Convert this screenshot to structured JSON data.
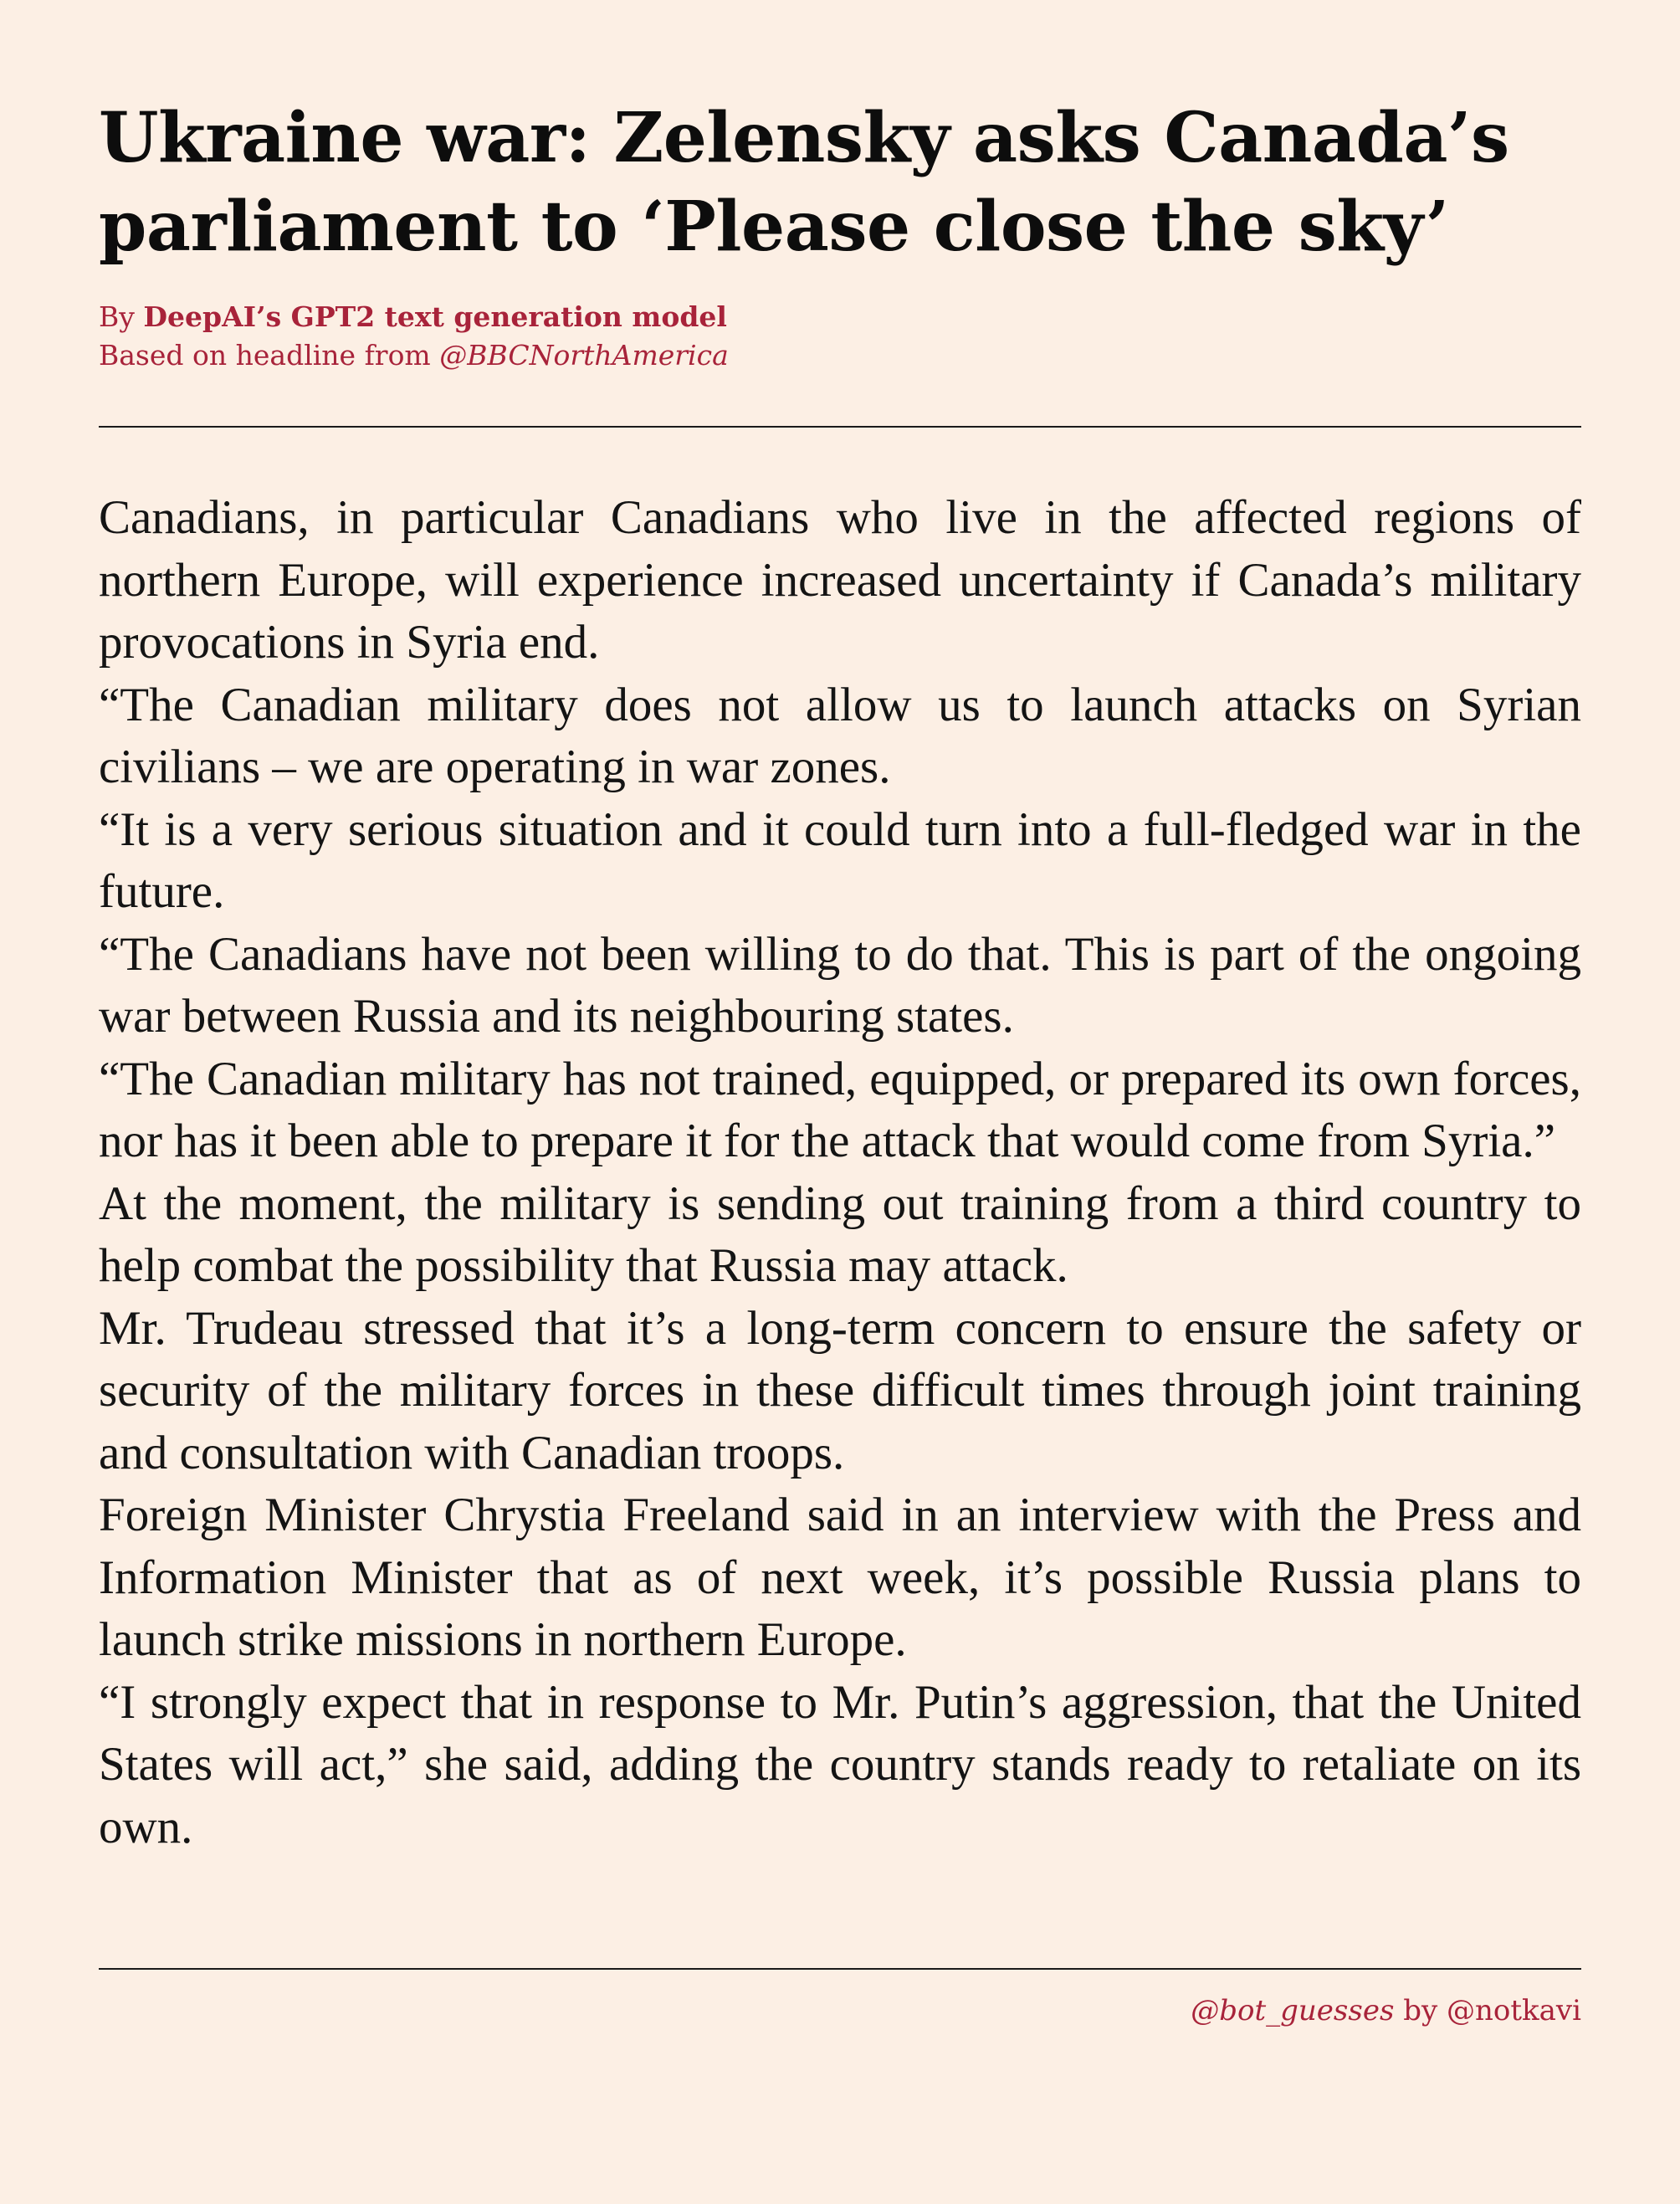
{
  "article": {
    "headline_line1": "Ukraine war: Zelensky asks Canada’s",
    "headline_line2": "parliament to ‘Please close the sky’",
    "byline": {
      "prefix": "By ",
      "author": "DeepAI’s GPT2 text generation model",
      "based_on_prefix": "Based on headline from ",
      "source_handle": "@BBCNorthAmerica"
    },
    "paragraphs": [
      "Canadians, in particular Canadians who live in the affected regions of northern Europe, will experience increased uncertainty if Canada’s military provocations in Syria end.",
      "“The Canadian military does not allow us to launch attacks on Syrian civilians – we are operating in war zones.",
      "“It is a very serious situation and it could turn into a full-fledged war in the future.",
      "“The Canadians have not been willing to do that. This is part of the ongoing war between Russia and its neighbouring states.",
      "“The Canadian military has not trained, equipped, or prepared its own forces, nor has it been able to prepare it for the attack that would come from Syria.”",
      "At the moment, the military is sending out training from a third country to help combat the possibility that Russia may attack.",
      "Mr.  Trudeau stressed that it’s a long-term concern to ensure the safety or security of the military forces in these difficult times through joint training and consultation with Canadian troops.",
      "Foreign Minister Chrystia Freeland said in an interview with the Press and Information Minister that as of next week, it’s possible Russia plans to launch strike missions in northern Europe.",
      "“I strongly expect that in response to Mr. Putin’s aggression, that the United States will act,” she said, adding the country stands ready to retaliate on its own."
    ]
  },
  "footer": {
    "bot_handle": "@bot_guesses",
    "by_text": " by ",
    "creator_handle": "@notkavi"
  },
  "colors": {
    "background": "#fcefe4",
    "accent": "#a8233a",
    "text": "#111111"
  }
}
